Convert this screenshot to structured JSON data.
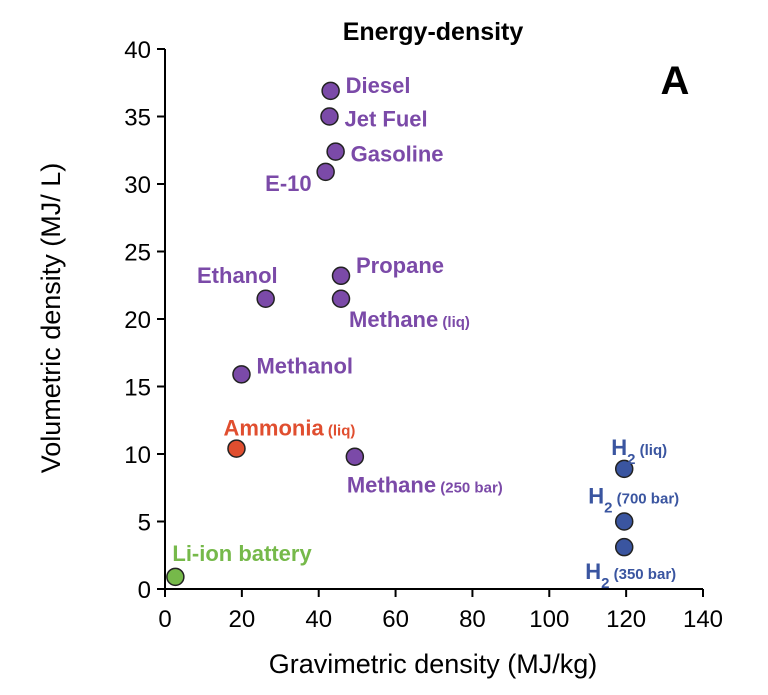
{
  "chart_data": {
    "type": "scatter",
    "title": "Energy-density",
    "panel_label": "A",
    "xlabel": "Gravimetric density (MJ/kg)",
    "ylabel": "Volumetric density (MJ/ L)",
    "xlim": [
      0,
      140
    ],
    "ylim": [
      0,
      40
    ],
    "xticks": [
      0,
      20,
      40,
      60,
      80,
      100,
      120,
      140
    ],
    "yticks": [
      0,
      5,
      10,
      15,
      20,
      25,
      30,
      35,
      40
    ],
    "grid": false,
    "colors": {
      "hydrocarbon": "#7b4aa8",
      "ammonia": "#e04e2f",
      "hydrogen": "#3a55a0",
      "battery": "#76b94a"
    },
    "points": [
      {
        "name": "Diesel",
        "x": 43.1,
        "y": 36.9,
        "group": "hydrocarbon",
        "label": "Diesel",
        "sub": ""
      },
      {
        "name": "Jet Fuel",
        "x": 42.8,
        "y": 35.0,
        "group": "hydrocarbon",
        "label": "Jet Fuel",
        "sub": ""
      },
      {
        "name": "Gasoline",
        "x": 44.4,
        "y": 32.4,
        "group": "hydrocarbon",
        "label": "Gasoline",
        "sub": ""
      },
      {
        "name": "E-10",
        "x": 41.8,
        "y": 30.9,
        "group": "hydrocarbon",
        "label": "E-10",
        "sub": ""
      },
      {
        "name": "Propane",
        "x": 45.8,
        "y": 23.2,
        "group": "hydrocarbon",
        "label": "Propane",
        "sub": ""
      },
      {
        "name": "Ethanol",
        "x": 26.2,
        "y": 21.5,
        "group": "hydrocarbon",
        "label": "Ethanol",
        "sub": ""
      },
      {
        "name": "Methane (liq)",
        "x": 45.8,
        "y": 21.5,
        "group": "hydrocarbon",
        "label": "Methane",
        "sub": "(liq)"
      },
      {
        "name": "Methanol",
        "x": 19.9,
        "y": 15.9,
        "group": "hydrocarbon",
        "label": "Methanol",
        "sub": ""
      },
      {
        "name": "Ammonia (liq)",
        "x": 18.6,
        "y": 10.4,
        "group": "ammonia",
        "label": "Ammonia",
        "sub": "(liq)"
      },
      {
        "name": "Methane (250 bar)",
        "x": 49.4,
        "y": 9.8,
        "group": "hydrocarbon",
        "label": "Methane",
        "sub": "(250 bar)"
      },
      {
        "name": "H2 (liq)",
        "x": 119.5,
        "y": 8.9,
        "group": "hydrogen",
        "label": "H",
        "sub": "(liq)"
      },
      {
        "name": "H2 (700 bar)",
        "x": 119.5,
        "y": 5.0,
        "group": "hydrogen",
        "label": "H",
        "sub": "(700 bar)"
      },
      {
        "name": "H2 (350 bar)",
        "x": 119.5,
        "y": 3.1,
        "group": "hydrogen",
        "label": "H",
        "sub": "(350 bar)"
      },
      {
        "name": "Li-ion battery",
        "x": 2.7,
        "y": 0.9,
        "group": "battery",
        "label": "Li-ion battery",
        "sub": ""
      }
    ]
  }
}
